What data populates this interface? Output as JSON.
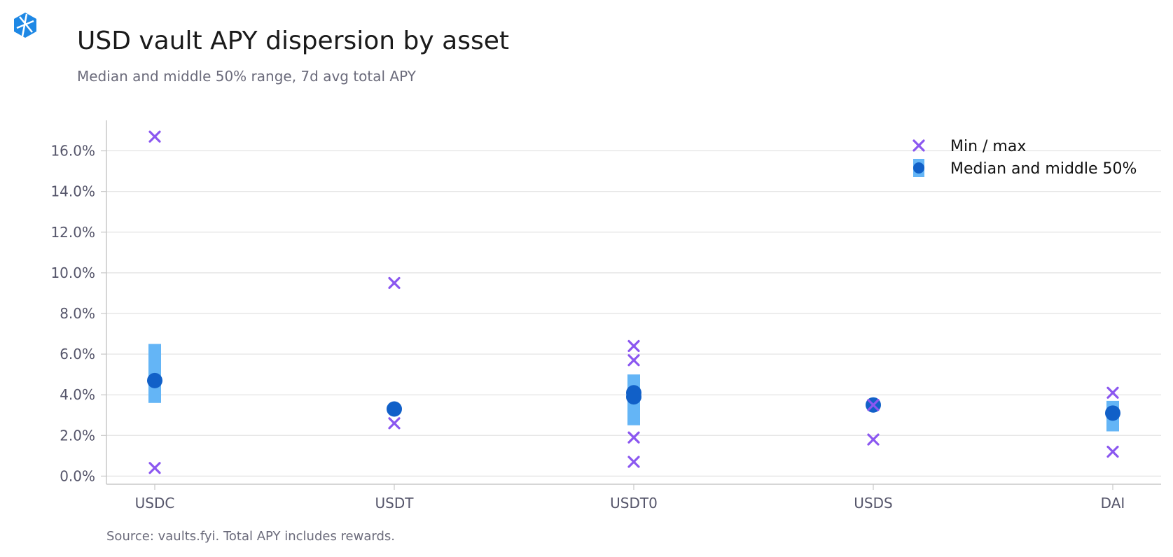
{
  "header": {
    "title": "USD vault APY dispersion by asset",
    "subtitle": "Median and middle 50% range, 7d avg total APY",
    "logo_icon": "vaults-fyi-logo-icon"
  },
  "footer": {
    "source": "Source: vaults.fyi. Total APY includes rewards."
  },
  "colors": {
    "marker_minmax": "#8b57f0",
    "median_dot": "#1160c8",
    "iqr_bar": "#64b5f6",
    "grid": "#e2e2e2",
    "axis": "#c8c8c8",
    "logo": "#1e88e5"
  },
  "chart_data": {
    "type": "scatter",
    "title": "USD vault APY dispersion by asset",
    "subtitle": "Median and middle 50% range, 7d avg total APY",
    "categories": [
      "USDC",
      "USDT",
      "USDT0",
      "USDS",
      "DAI"
    ],
    "y_tick_values": [
      0,
      2,
      4,
      6,
      8,
      10,
      12,
      14,
      16
    ],
    "y_tick_labels": [
      "0.0%",
      "2.0%",
      "4.0%",
      "6.0%",
      "8.0%",
      "10.0%",
      "12.0%",
      "14.0%",
      "16.0%"
    ],
    "ylim": [
      -0.4,
      17.5
    ],
    "y_unit": "%",
    "grid": "horizontal",
    "legend_position": "top-right",
    "legend": [
      {
        "label": "Min / max",
        "marker": "x"
      },
      {
        "label": "Median and middle 50%",
        "marker": "dot-with-bar"
      }
    ],
    "series": [
      {
        "name": "Min / max",
        "marker": "x",
        "points": [
          {
            "category": "USDC",
            "values": [
              16.7,
              0.4
            ]
          },
          {
            "category": "USDT",
            "values": [
              9.5,
              2.6
            ]
          },
          {
            "category": "USDT0",
            "values": [
              6.4,
              5.7,
              1.9,
              0.7
            ]
          },
          {
            "category": "USDS",
            "values": [
              3.5,
              1.8
            ]
          },
          {
            "category": "DAI",
            "values": [
              4.1,
              1.2
            ]
          }
        ]
      },
      {
        "name": "Median and middle 50%",
        "marker": "dot-with-bar",
        "points": [
          {
            "category": "USDC",
            "medians": [
              4.7
            ],
            "q1": 3.6,
            "q3": 6.5
          },
          {
            "category": "USDT",
            "medians": [
              3.3
            ],
            "q1": 3.1,
            "q3": 3.3
          },
          {
            "category": "USDT0",
            "medians": [
              4.1,
              3.9
            ],
            "q1": 2.5,
            "q3": 5.0
          },
          {
            "category": "USDS",
            "medians": [
              3.5
            ],
            "q1": 3.4,
            "q3": 3.6
          },
          {
            "category": "DAI",
            "medians": [
              3.1
            ],
            "q1": 2.2,
            "q3": 3.7
          }
        ]
      }
    ]
  }
}
